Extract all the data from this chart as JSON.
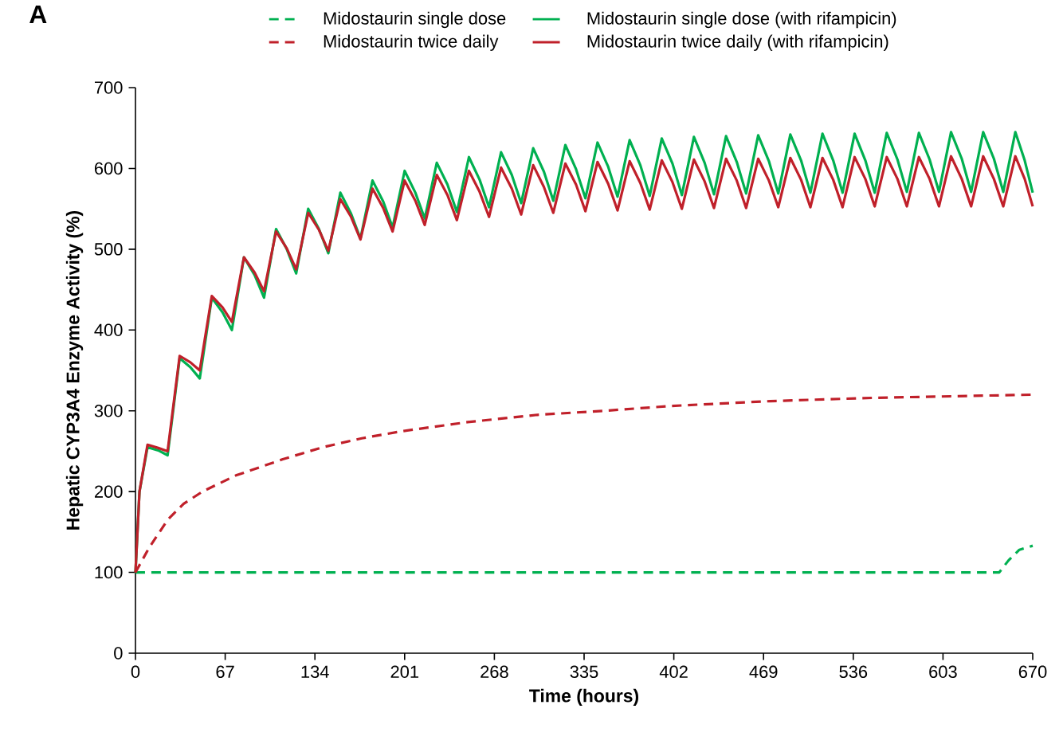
{
  "chart_data": {
    "type": "line",
    "xlabel": "Time (hours)",
    "ylabel": "Hepatic CYP3A4 Enzyme Activity (%)",
    "annotations": [
      "A"
    ],
    "xlim": [
      0,
      670
    ],
    "xticks": [
      0,
      67,
      134,
      201,
      268,
      335,
      402,
      469,
      536,
      603,
      670
    ],
    "ylim": [
      0,
      700
    ],
    "yticks": [
      0,
      100,
      200,
      300,
      400,
      500,
      600,
      700
    ],
    "grid": false,
    "legend": "top",
    "marker": "none",
    "series": [
      {
        "name": "Midostaurin single dose",
        "color": "#00b050",
        "line_style": "dashed",
        "x": [
          0,
          645,
          652,
          660,
          670
        ],
        "values": [
          100,
          100,
          115,
          128,
          133
        ]
      },
      {
        "name": "Midostaurin single dose (with rifampicin)",
        "color": "#00b050",
        "line_style": "solid",
        "x": [
          0,
          3,
          9,
          17,
          24,
          33,
          41,
          48,
          57,
          65,
          72,
          81,
          89,
          96,
          105,
          113,
          120,
          129,
          137,
          144,
          153,
          161,
          168,
          177,
          185,
          192,
          201,
          209,
          216,
          225,
          233,
          240,
          249,
          257,
          264,
          273,
          281,
          288,
          297,
          305,
          312,
          321,
          329,
          336,
          345,
          353,
          360,
          369,
          377,
          384,
          393,
          401,
          408,
          417,
          425,
          432,
          441,
          449,
          456,
          465,
          473,
          480,
          489,
          497,
          504,
          513,
          521,
          528,
          537,
          545,
          552,
          561,
          569,
          576,
          585,
          593,
          600,
          609,
          617,
          624,
          633,
          641,
          648,
          657,
          664,
          670
        ],
        "values": [
          100,
          200,
          255,
          251,
          245,
          365,
          354,
          340,
          440,
          422,
          400,
          490,
          468,
          440,
          525,
          500,
          470,
          550,
          525,
          495,
          570,
          544,
          513,
          585,
          559,
          527,
          597,
          570,
          538,
          607,
          580,
          546,
          614,
          586,
          552,
          620,
          592,
          557,
          625,
          596,
          560,
          629,
          599,
          563,
          632,
          602,
          565,
          635,
          604,
          566,
          637,
          606,
          567,
          639,
          607,
          568,
          640,
          608,
          569,
          641,
          609,
          569,
          642,
          610,
          570,
          643,
          610,
          570,
          643,
          610,
          570,
          644,
          611,
          571,
          644,
          611,
          571,
          645,
          612,
          571,
          645,
          612,
          571,
          645,
          610,
          570
        ]
      },
      {
        "name": "Midostaurin twice daily",
        "color": "#c0202a",
        "line_style": "dashed",
        "x": [
          0,
          10,
          24,
          36,
          50,
          75,
          110,
          140,
          169,
          200,
          248,
          300,
          350,
          400,
          474,
          550,
          610,
          670
        ],
        "values": [
          100,
          130,
          165,
          185,
          200,
          220,
          240,
          255,
          266,
          275,
          286,
          295,
          300,
          306,
          312,
          316,
          318,
          320
        ]
      },
      {
        "name": "Midostaurin twice daily (with rifampicin)",
        "color": "#c0202a",
        "line_style": "solid",
        "x": [
          0,
          3,
          9,
          17,
          24,
          33,
          41,
          48,
          57,
          65,
          72,
          81,
          89,
          96,
          105,
          113,
          120,
          129,
          137,
          144,
          153,
          161,
          168,
          177,
          185,
          192,
          201,
          209,
          216,
          225,
          233,
          240,
          249,
          257,
          264,
          273,
          281,
          288,
          297,
          305,
          312,
          321,
          329,
          336,
          345,
          353,
          360,
          369,
          377,
          384,
          393,
          401,
          408,
          417,
          425,
          432,
          441,
          449,
          456,
          465,
          473,
          480,
          489,
          497,
          504,
          513,
          521,
          528,
          537,
          545,
          552,
          561,
          569,
          576,
          585,
          593,
          600,
          609,
          617,
          624,
          633,
          641,
          648,
          657,
          664,
          670
        ],
        "values": [
          100,
          200,
          258,
          254,
          250,
          368,
          360,
          350,
          442,
          428,
          410,
          490,
          471,
          448,
          522,
          501,
          475,
          545,
          524,
          498,
          562,
          540,
          512,
          575,
          551,
          522,
          585,
          560,
          530,
          592,
          567,
          536,
          597,
          571,
          540,
          601,
          575,
          543,
          604,
          577,
          545,
          606,
          580,
          547,
          608,
          581,
          548,
          609,
          582,
          549,
          610,
          583,
          550,
          611,
          584,
          551,
          612,
          585,
          551,
          612,
          585,
          552,
          613,
          586,
          552,
          613,
          586,
          552,
          614,
          587,
          553,
          614,
          587,
          553,
          614,
          587,
          553,
          615,
          587,
          553,
          615,
          587,
          553,
          615,
          587,
          553
        ]
      }
    ]
  }
}
